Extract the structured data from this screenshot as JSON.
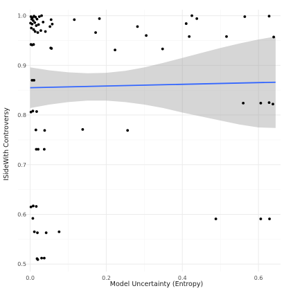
{
  "chart_data": {
    "type": "scatter",
    "title": "",
    "xlabel": "Model Uncertainty (Entropy)",
    "ylabel": "ISideWith Controversy",
    "xlim": [
      -0.032,
      0.658
    ],
    "ylim": [
      0.485,
      1.012
    ],
    "x_ticks": [
      0.0,
      0.2,
      0.4,
      0.6
    ],
    "x_tick_labels": [
      "0.0",
      "0.2",
      "0.4",
      "0.6"
    ],
    "y_ticks": [
      0.5,
      0.6,
      0.7,
      0.8,
      0.9,
      1.0
    ],
    "y_tick_labels": [
      "0.5",
      "0.6",
      "0.7",
      "0.8",
      "0.9",
      "1.0"
    ],
    "grid": true,
    "points": [
      {
        "x": 0.002,
        "y": 0.998
      },
      {
        "x": 0.006,
        "y": 0.996
      },
      {
        "x": 0.01,
        "y": 0.999
      },
      {
        "x": 0.004,
        "y": 0.993
      },
      {
        "x": 0.008,
        "y": 0.99
      },
      {
        "x": 0.014,
        "y": 0.997
      },
      {
        "x": 0.018,
        "y": 0.993
      },
      {
        "x": 0.024,
        "y": 0.998
      },
      {
        "x": 0.03,
        "y": 1.0
      },
      {
        "x": 0.001,
        "y": 0.985
      },
      {
        "x": 0.005,
        "y": 0.983
      },
      {
        "x": 0.012,
        "y": 0.986
      },
      {
        "x": 0.016,
        "y": 0.98
      },
      {
        "x": 0.022,
        "y": 0.982
      },
      {
        "x": 0.034,
        "y": 0.987
      },
      {
        "x": 0.003,
        "y": 0.975
      },
      {
        "x": 0.009,
        "y": 0.972
      },
      {
        "x": 0.013,
        "y": 0.968
      },
      {
        "x": 0.02,
        "y": 0.966
      },
      {
        "x": 0.028,
        "y": 0.97
      },
      {
        "x": 0.04,
        "y": 0.968
      },
      {
        "x": 0.052,
        "y": 0.978
      },
      {
        "x": 0.058,
        "y": 0.983
      },
      {
        "x": 0.055,
        "y": 0.992
      },
      {
        "x": 0.002,
        "y": 0.942
      },
      {
        "x": 0.005,
        "y": 0.941
      },
      {
        "x": 0.009,
        "y": 0.942
      },
      {
        "x": 0.054,
        "y": 0.935
      },
      {
        "x": 0.056,
        "y": 0.934
      },
      {
        "x": 0.116,
        "y": 0.992
      },
      {
        "x": 0.172,
        "y": 0.966
      },
      {
        "x": 0.182,
        "y": 0.994
      },
      {
        "x": 0.223,
        "y": 0.931
      },
      {
        "x": 0.282,
        "y": 0.978
      },
      {
        "x": 0.305,
        "y": 0.96
      },
      {
        "x": 0.348,
        "y": 0.933
      },
      {
        "x": 0.41,
        "y": 0.984
      },
      {
        "x": 0.418,
        "y": 0.958
      },
      {
        "x": 0.425,
        "y": 1.0
      },
      {
        "x": 0.438,
        "y": 0.994
      },
      {
        "x": 0.516,
        "y": 0.958
      },
      {
        "x": 0.564,
        "y": 0.998
      },
      {
        "x": 0.628,
        "y": 0.999
      },
      {
        "x": 0.64,
        "y": 0.957
      },
      {
        "x": 0.005,
        "y": 0.87
      },
      {
        "x": 0.01,
        "y": 0.87
      },
      {
        "x": 0.002,
        "y": 0.806
      },
      {
        "x": 0.007,
        "y": 0.808
      },
      {
        "x": 0.017,
        "y": 0.807
      },
      {
        "x": 0.015,
        "y": 0.77
      },
      {
        "x": 0.038,
        "y": 0.769
      },
      {
        "x": 0.138,
        "y": 0.771
      },
      {
        "x": 0.256,
        "y": 0.769
      },
      {
        "x": 0.016,
        "y": 0.731
      },
      {
        "x": 0.021,
        "y": 0.731
      },
      {
        "x": 0.037,
        "y": 0.731
      },
      {
        "x": 0.56,
        "y": 0.824
      },
      {
        "x": 0.606,
        "y": 0.824
      },
      {
        "x": 0.628,
        "y": 0.825
      },
      {
        "x": 0.638,
        "y": 0.822
      },
      {
        "x": 0.002,
        "y": 0.615
      },
      {
        "x": 0.008,
        "y": 0.617
      },
      {
        "x": 0.016,
        "y": 0.616
      },
      {
        "x": 0.007,
        "y": 0.592
      },
      {
        "x": 0.488,
        "y": 0.591
      },
      {
        "x": 0.606,
        "y": 0.591
      },
      {
        "x": 0.629,
        "y": 0.591
      },
      {
        "x": 0.011,
        "y": 0.565
      },
      {
        "x": 0.019,
        "y": 0.563
      },
      {
        "x": 0.042,
        "y": 0.563
      },
      {
        "x": 0.076,
        "y": 0.565
      },
      {
        "x": 0.018,
        "y": 0.511
      },
      {
        "x": 0.02,
        "y": 0.509
      },
      {
        "x": 0.03,
        "y": 0.512
      },
      {
        "x": 0.037,
        "y": 0.512
      }
    ],
    "fit_line": {
      "x": [
        0.0,
        0.645
      ],
      "y": [
        0.855,
        0.866
      ]
    },
    "confidence_band": {
      "x": [
        0.0,
        0.05,
        0.1,
        0.15,
        0.2,
        0.25,
        0.3,
        0.35,
        0.4,
        0.45,
        0.5,
        0.55,
        0.6,
        0.645
      ],
      "upper": [
        0.896,
        0.89,
        0.886,
        0.884,
        0.885,
        0.889,
        0.896,
        0.905,
        0.915,
        0.925,
        0.935,
        0.944,
        0.952,
        0.958
      ],
      "lower": [
        0.814,
        0.821,
        0.826,
        0.829,
        0.829,
        0.826,
        0.821,
        0.814,
        0.805,
        0.797,
        0.789,
        0.781,
        0.775,
        0.774
      ]
    }
  }
}
